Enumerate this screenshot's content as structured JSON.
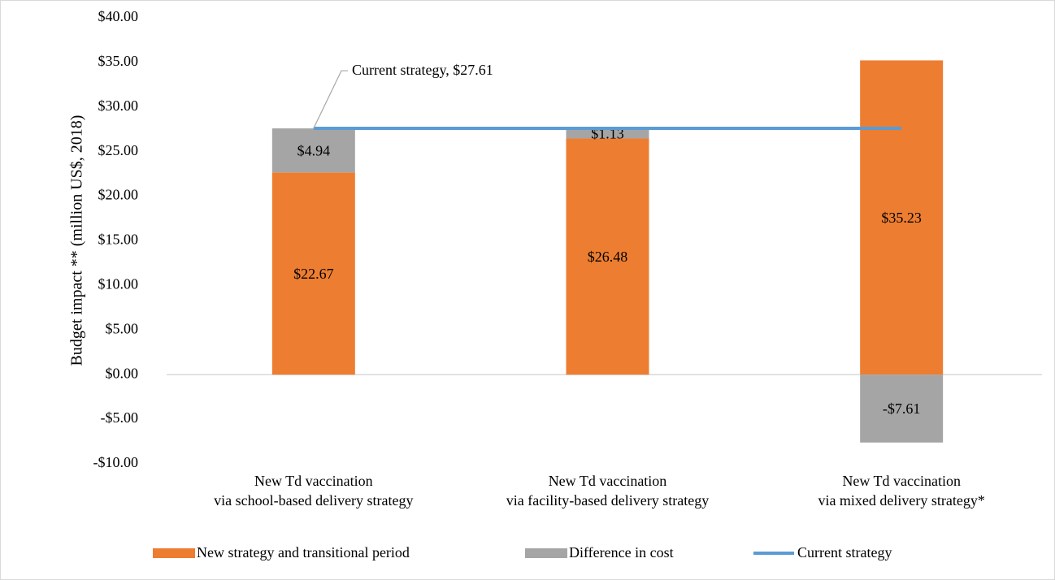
{
  "chart_data": {
    "type": "bar",
    "stacked": true,
    "y_label": "Budget impact ** (million US$, 2018)",
    "annotation": "Current strategy,  $27.61",
    "categories": [
      [
        "New Td vaccination",
        "via school-based delivery strategy"
      ],
      [
        "New Td vaccination",
        "via facility-based delivery strategy"
      ],
      [
        "New Td vaccination",
        "via mixed delivery strategy*"
      ]
    ],
    "series": [
      {
        "name": "New strategy and transitional period",
        "color": "#ed7d31",
        "values": [
          22.67,
          26.48,
          35.23
        ],
        "value_labels": [
          "$22.67",
          "$26.48",
          "$35.23"
        ]
      },
      {
        "name": "Difference in cost",
        "color": "#a5a5a5",
        "values": [
          4.94,
          1.13,
          -7.61
        ],
        "value_labels": [
          "$4.94",
          "$1.13",
          "-$7.61"
        ]
      },
      {
        "name": "Current strategy",
        "color": "#5b9bd5",
        "type": "line",
        "values": [
          27.61,
          27.61,
          27.61
        ]
      }
    ],
    "ylim": [
      -10,
      40
    ],
    "yticks": [
      {
        "value": 40,
        "label": "$40.00"
      },
      {
        "value": 35,
        "label": "$35.00"
      },
      {
        "value": 30,
        "label": "$30.00"
      },
      {
        "value": 25,
        "label": "$25.00"
      },
      {
        "value": 20,
        "label": "$20.00"
      },
      {
        "value": 15,
        "label": "$15.00"
      },
      {
        "value": 10,
        "label": "$10.00"
      },
      {
        "value": 5,
        "label": "$5.00"
      },
      {
        "value": 0,
        "label": "$0.00"
      },
      {
        "value": -5,
        "label": "-$5.00"
      },
      {
        "value": -10,
        "label": "-$10.00"
      }
    ],
    "grid": false,
    "legend": "bottom"
  }
}
